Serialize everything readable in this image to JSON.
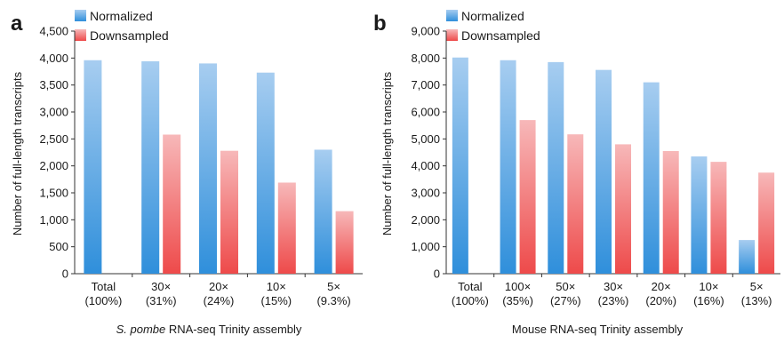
{
  "colors": {
    "normalized_top": "#a7cdf0",
    "normalized_bottom": "#2f8fdb",
    "downsampled_top": "#f7b8b9",
    "downsampled_bottom": "#ee4a4a",
    "axis": "#333333"
  },
  "chart_data": [
    {
      "type": "bar",
      "panel_label": "a",
      "title": "",
      "xlabel_italic": "S. pombe",
      "xlabel_rest": " RNA-seq Trinity assembly",
      "ylabel": "Number of full-length transcripts",
      "ylim": [
        0,
        4500
      ],
      "yticks": [
        0,
        500,
        1000,
        1500,
        2000,
        2500,
        3000,
        3500,
        4000,
        4500
      ],
      "ytick_labels": [
        "0",
        "500",
        "1,000",
        "1,500",
        "2,000",
        "2,500",
        "3,000",
        "3,500",
        "4,000",
        "4,500"
      ],
      "categories": [
        [
          "Total",
          "(100%)"
        ],
        [
          "30×",
          "(31%)"
        ],
        [
          "20×",
          "(24%)"
        ],
        [
          "10×",
          "(15%)"
        ],
        [
          "5×",
          "(9.3%)"
        ]
      ],
      "series": [
        {
          "name": "Normalized",
          "values": [
            3960,
            3940,
            3900,
            3730,
            2300
          ]
        },
        {
          "name": "Downsampled",
          "values": [
            null,
            2580,
            2280,
            1690,
            1160
          ]
        }
      ],
      "legend_position": "top-left",
      "grid": false
    },
    {
      "type": "bar",
      "panel_label": "b",
      "title": "",
      "xlabel_italic": "",
      "xlabel_rest": "Mouse RNA-seq Trinity assembly",
      "ylabel": "Number of full-length transcripts",
      "ylim": [
        0,
        9000
      ],
      "yticks": [
        0,
        1000,
        2000,
        3000,
        4000,
        5000,
        6000,
        7000,
        8000,
        9000
      ],
      "ytick_labels": [
        "0",
        "1,000",
        "2,000",
        "3,000",
        "4,000",
        "5,000",
        "6,000",
        "7,000",
        "8,000",
        "9,000"
      ],
      "categories": [
        [
          "Total",
          "(100%)"
        ],
        [
          "100×",
          "(35%)"
        ],
        [
          "50×",
          "(27%)"
        ],
        [
          "30×",
          "(23%)"
        ],
        [
          "20×",
          "(20%)"
        ],
        [
          "10×",
          "(16%)"
        ],
        [
          "5×",
          "(13%)"
        ]
      ],
      "series": [
        {
          "name": "Normalized",
          "values": [
            8020,
            7920,
            7850,
            7560,
            7100,
            4350,
            1250
          ]
        },
        {
          "name": "Downsampled",
          "values": [
            null,
            5700,
            5170,
            4800,
            4550,
            4150,
            3750
          ]
        }
      ],
      "legend_position": "top-left",
      "grid": false
    }
  ]
}
